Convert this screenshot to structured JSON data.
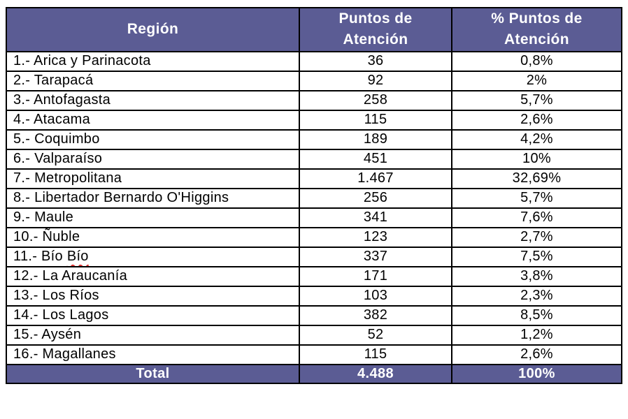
{
  "table": {
    "columns": [
      "Región",
      "Puntos de Atención",
      "% Puntos de Atención"
    ],
    "rows": [
      {
        "region": "1.- Arica y Parinacota",
        "puntos": "36",
        "pct": "0,8%"
      },
      {
        "region": "2.- Tarapacá",
        "puntos": "92",
        "pct": "2%"
      },
      {
        "region": "3.- Antofagasta",
        "puntos": "258",
        "pct": "5,7%"
      },
      {
        "region": "4.- Atacama",
        "puntos": "115",
        "pct": "2,6%"
      },
      {
        "region": "5.- Coquimbo",
        "puntos": "189",
        "pct": "4,2%"
      },
      {
        "region": "6.- Valparaíso",
        "puntos": "451",
        "pct": "10%"
      },
      {
        "region": "7.- Metropolitana",
        "puntos": "1.467",
        "pct": "32,69%"
      },
      {
        "region": "8.- Libertador Bernardo O'Higgins",
        "puntos": "256",
        "pct": "5,7%"
      },
      {
        "region": "9.- Maule",
        "puntos": "341",
        "pct": "7,6%"
      },
      {
        "region": "10.- Ñuble",
        "puntos": "123",
        "pct": "2,7%"
      },
      {
        "region": "11.- Bío Bío",
        "puntos": "337",
        "pct": "7,5%",
        "squiggle_word": "Bío"
      },
      {
        "region": "12.- La Araucanía",
        "puntos": "171",
        "pct": "3,8%"
      },
      {
        "region": "13.- Los Ríos",
        "puntos": "103",
        "pct": "2,3%"
      },
      {
        "region": "14.- Los Lagos",
        "puntos": "382",
        "pct": "8,5%"
      },
      {
        "region": "15.- Aysén",
        "puntos": "52",
        "pct": "1,2%"
      },
      {
        "region": "16.- Magallanes",
        "puntos": "115",
        "pct": "2,6%"
      }
    ],
    "total": {
      "label": "Total",
      "puntos": "4.488",
      "pct": "100%"
    }
  },
  "colors": {
    "header_bg": "#5B5C94",
    "header_text": "#FFFFFF",
    "border": "#000000",
    "body_text": "#000000",
    "spellcheck_underline": "#E03030"
  }
}
